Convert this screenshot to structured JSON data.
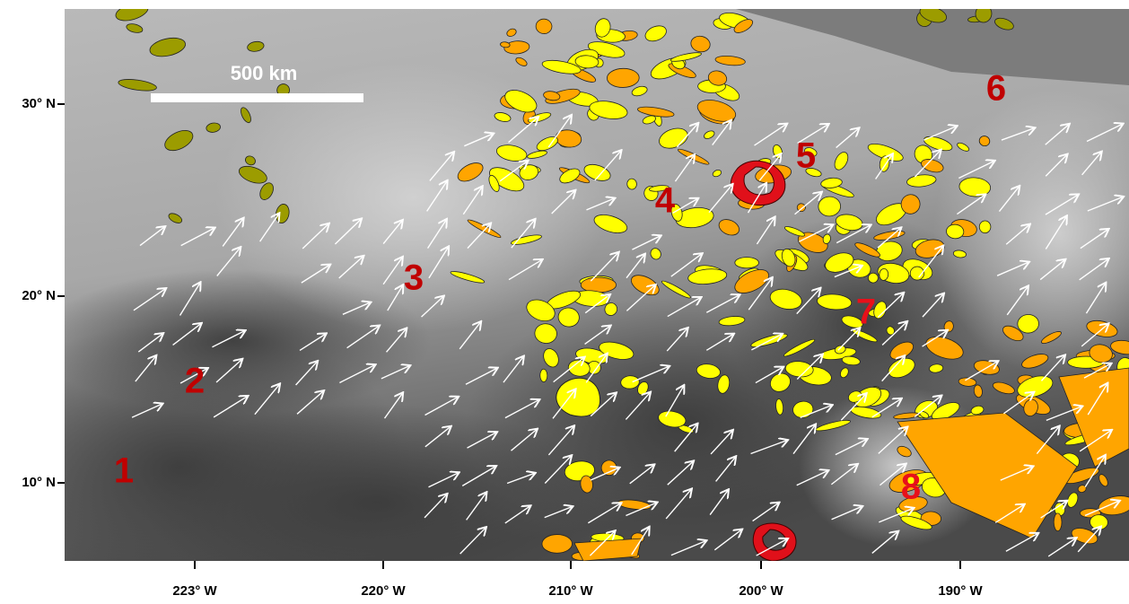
{
  "scale_bar": "500 km",
  "region_labels": [
    "1",
    "2",
    "3",
    "4",
    "5",
    "6",
    "7",
    "8"
  ],
  "lat_labels": [
    "30° N",
    "20° N",
    "10° N"
  ],
  "lon_labels": [
    "223° W",
    "220° W",
    "210° W",
    "200° W",
    "190° W"
  ]
}
